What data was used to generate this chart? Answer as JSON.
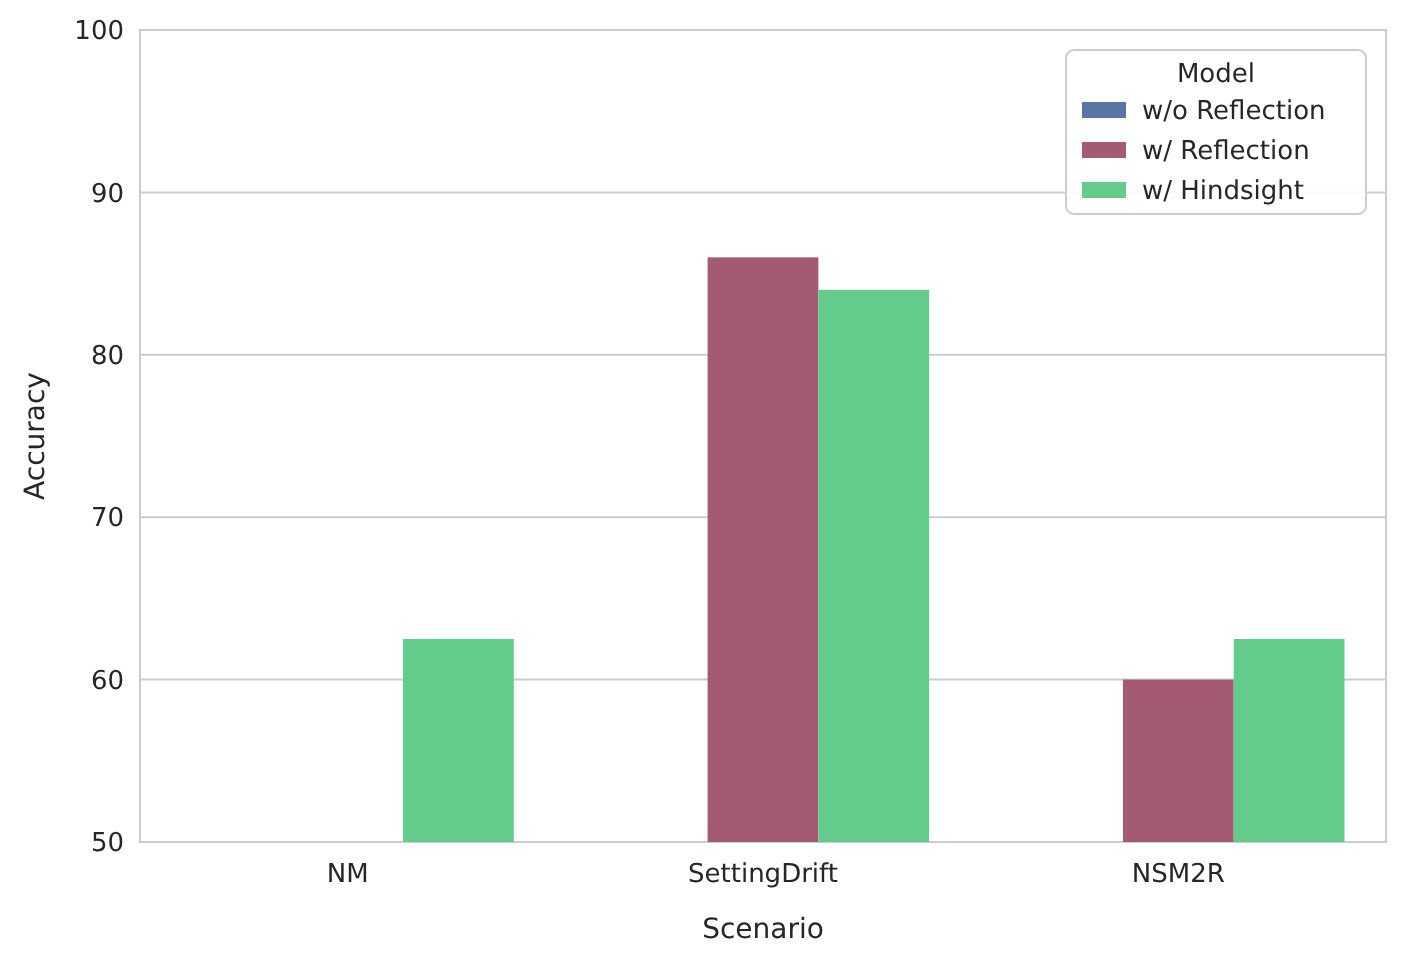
{
  "chart_data": {
    "type": "bar",
    "xlabel": "Scenario",
    "ylabel": "Accuracy",
    "legend_title": "Model",
    "categories": [
      "NM",
      "SettingDrift",
      "NSM2R"
    ],
    "series": [
      {
        "name": "w/o Reflection",
        "color": "#5875a4",
        "values": [
          null,
          null,
          null
        ]
      },
      {
        "name": "w/ Reflection",
        "color": "#a45a72",
        "values": [
          null,
          86,
          60
        ]
      },
      {
        "name": "w/ Hindsight",
        "color": "#64cc8a",
        "values": [
          62.5,
          84,
          62.5
        ]
      }
    ],
    "ylim": [
      50,
      100
    ],
    "yticks": [
      50,
      60,
      70,
      80,
      90,
      100
    ],
    "grid": "y",
    "legend": "top right"
  }
}
